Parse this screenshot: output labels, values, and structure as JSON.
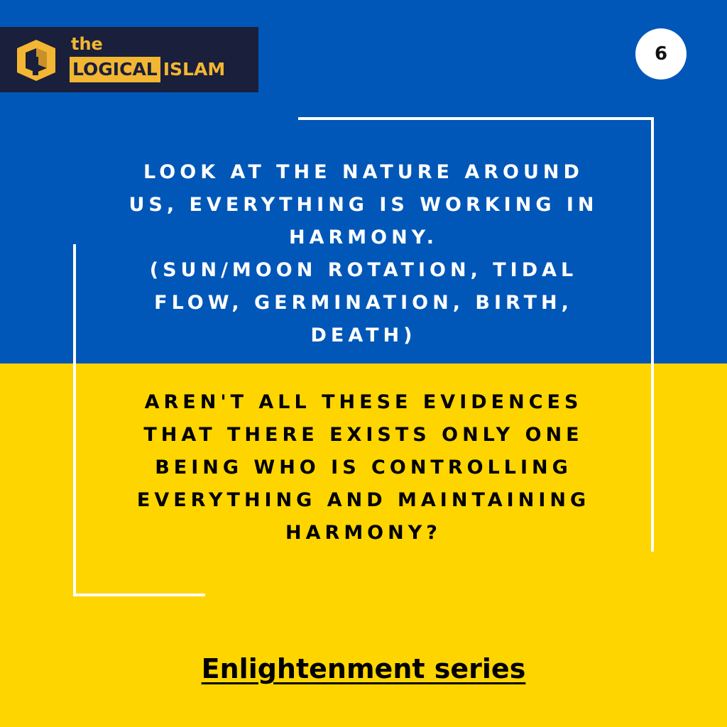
{
  "logo": {
    "the": "the",
    "logical": "LOGICAL",
    "islam": "ISLAM",
    "colors": {
      "background": "#1a1f3b",
      "accent": "#f2b632"
    }
  },
  "page_number": "6",
  "statement_lines": [
    "LOOK AT THE NATURE AROUND",
    "US, EVERYTHING IS WORKING IN",
    "HARMONY.",
    "(SUN/MOON ROTATION, TIDAL",
    "FLOW, GERMINATION, BIRTH,",
    "DEATH)"
  ],
  "question_lines": [
    "AREN'T ALL THESE EVIDENCES",
    "THAT THERE EXISTS ONLY ONE",
    "BEING WHO IS CONTROLLING",
    "EVERYTHING AND MAINTAINING",
    "HARMONY?"
  ],
  "series_title": "Enlightenment series",
  "colors": {
    "top_band": "#0057b8",
    "bottom_band": "#ffd500",
    "frame": "#ffffff"
  }
}
